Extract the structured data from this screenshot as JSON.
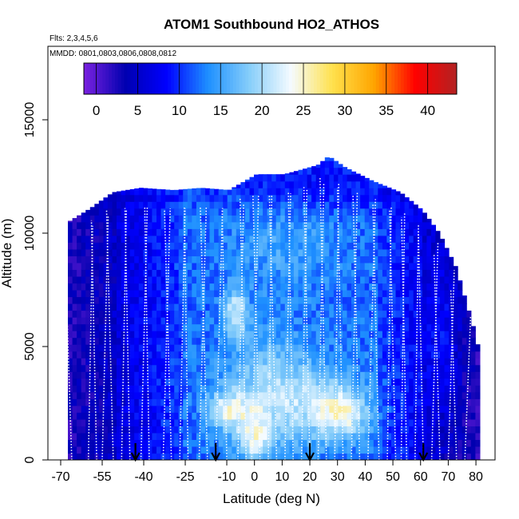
{
  "chart_data": {
    "type": "heatmap",
    "title": "ATOM1 Southbound HO2_ATHOS",
    "subtitle_flights": "Flts: 2,3,4,5,6",
    "subtitle_dates": "MMDD: 0801,0803,0806,0808,0812",
    "xlabel": "Latitude (deg N)",
    "ylabel": "Altitude (m)",
    "xlim": [
      -70,
      82
    ],
    "ylim": [
      0,
      17500
    ],
    "x_ticks": [
      -70,
      -55,
      -40,
      -25,
      -10,
      0,
      10,
      20,
      30,
      40,
      50,
      60,
      70,
      80
    ],
    "y_ticks": [
      0,
      5000,
      10000,
      15000
    ],
    "colorbar": {
      "min": -1.5,
      "max": 43.5,
      "ticks": [
        0,
        5,
        10,
        15,
        20,
        25,
        30,
        35,
        40
      ],
      "colors": [
        "#7b22e0",
        "#0000b0",
        "#0000ff",
        "#1e90ff",
        "#87cefa",
        "#f5fbff",
        "#ffe14d",
        "#ffa500",
        "#ff0000",
        "#b22222"
      ]
    },
    "arrows_at_latitude": [
      -43,
      -14,
      20,
      61
    ],
    "profile_latitudes": [
      -68.5,
      -66,
      -60,
      -57,
      -55,
      -51,
      -48,
      -45,
      -41,
      -38,
      -33,
      -30,
      -27,
      -24,
      -20,
      -17,
      -14,
      -10,
      -6,
      -3,
      -1,
      2,
      5,
      8,
      11,
      14,
      17,
      20,
      23,
      26,
      29,
      32,
      35,
      38,
      41,
      45,
      48,
      51,
      53,
      55,
      58,
      61,
      64,
      67,
      70,
      73,
      76
    ],
    "envelope_top_m": [
      [
        -68,
        10500
      ],
      [
        -60,
        11100
      ],
      [
        -52,
        11800
      ],
      [
        -42,
        12000
      ],
      [
        -30,
        11900
      ],
      [
        -20,
        12000
      ],
      [
        -10,
        11900
      ],
      [
        0,
        12600
      ],
      [
        10,
        12600
      ],
      [
        22,
        13000
      ],
      [
        26,
        13400
      ],
      [
        32,
        12900
      ],
      [
        42,
        12300
      ],
      [
        52,
        11800
      ],
      [
        60,
        11000
      ],
      [
        66,
        10000
      ],
      [
        72,
        8500
      ],
      [
        78,
        6000
      ],
      [
        80,
        5000
      ]
    ]
  }
}
